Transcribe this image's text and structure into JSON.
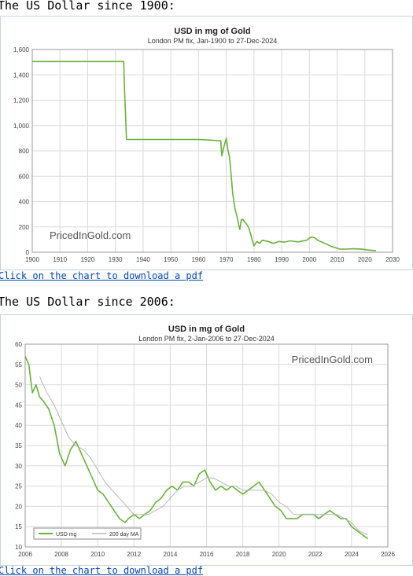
{
  "sections": [
    {
      "heading": "The US Dollar since 1900:",
      "link_text": "Click on the chart to download a pdf"
    },
    {
      "heading": "The US Dollar since 2006:",
      "link_text": "Click on the chart to download a pdf"
    }
  ],
  "colors": {
    "series": "#6bb13e",
    "ma": "#b7b7b7",
    "grid": "#d9d9d9",
    "link": "#0645ad"
  },
  "chart_data": [
    {
      "type": "line",
      "title": "USD in mg of Gold",
      "subtitle": "London PM fix, Jan-1900 to 27-Dec-2024",
      "watermark": "PricedInGold.com",
      "xlim": [
        1900,
        2030
      ],
      "ylim": [
        0,
        1600
      ],
      "x_ticks": [
        "1900",
        "1910",
        "1920",
        "1930",
        "1940",
        "1950",
        "1960",
        "1970",
        "1980",
        "1990",
        "2000",
        "2010",
        "2020",
        "2030"
      ],
      "y_ticks": [
        "0",
        "200",
        "400",
        "600",
        "800",
        "1,000",
        "1,200",
        "1,400",
        "1,600"
      ],
      "grid": true,
      "series": [
        {
          "x": [
            1900,
            1933.0,
            1933.3,
            1934,
            1950,
            1960,
            1968,
            1968.4,
            1969,
            1970,
            1970.6,
            1971.2,
            1971.8,
            1972.3,
            1973.1,
            1973.8,
            1974.5,
            1974.9,
            1975.4,
            1976,
            1976.6,
            1977.2,
            1978,
            1978.6,
            1979.4,
            1980,
            1981,
            1982,
            1983,
            1985,
            1987,
            1989,
            1991,
            1993,
            1996,
            1999,
            2000,
            2001,
            2002,
            2003,
            2005,
            2008,
            2011,
            2013,
            2016,
            2019,
            2021,
            2024
          ],
          "y": [
            1505,
            1505,
            1280,
            890,
            890,
            890,
            880,
            760,
            820,
            900,
            810,
            750,
            600,
            470,
            350,
            290,
            215,
            180,
            255,
            260,
            240,
            225,
            200,
            160,
            95,
            50,
            85,
            70,
            95,
            85,
            70,
            85,
            80,
            90,
            82,
            95,
            112,
            120,
            112,
            95,
            75,
            45,
            25,
            25,
            27,
            24,
            18,
            12
          ]
        }
      ]
    },
    {
      "type": "line",
      "title": "USD in mg of Gold",
      "subtitle": "London PM fix, 2-Jan-2006 to 27-Dec-2024",
      "watermark": "PricedInGold.com",
      "xlim": [
        2006,
        2026
      ],
      "ylim": [
        10,
        60
      ],
      "x_ticks": [
        "2006",
        "2008",
        "2010",
        "2012",
        "2014",
        "2016",
        "2018",
        "2020",
        "2022",
        "2024",
        "2026"
      ],
      "y_ticks": [
        "10",
        "15",
        "20",
        "25",
        "30",
        "35",
        "40",
        "45",
        "50",
        "55",
        "60"
      ],
      "grid": true,
      "series": [
        {
          "name": "USD mg",
          "x": [
            2006.0,
            2006.2,
            2006.4,
            2006.6,
            2006.8,
            2007.0,
            2007.3,
            2007.6,
            2007.9,
            2008.2,
            2008.5,
            2008.8,
            2009.1,
            2009.4,
            2009.7,
            2010.0,
            2010.3,
            2010.6,
            2010.9,
            2011.2,
            2011.5,
            2011.7,
            2012.0,
            2012.3,
            2012.6,
            2012.9,
            2013.2,
            2013.5,
            2013.8,
            2014.1,
            2014.4,
            2014.7,
            2015.0,
            2015.3,
            2015.6,
            2015.9,
            2016.2,
            2016.5,
            2016.8,
            2017.1,
            2017.4,
            2017.7,
            2018.0,
            2018.3,
            2018.6,
            2018.9,
            2019.2,
            2019.5,
            2019.8,
            2020.1,
            2020.4,
            2020.7,
            2021.0,
            2021.3,
            2021.6,
            2021.9,
            2022.2,
            2022.5,
            2022.8,
            2023.1,
            2023.4,
            2023.7,
            2024.0,
            2024.3,
            2024.6,
            2024.9
          ],
          "y": [
            57,
            55,
            48,
            50,
            47,
            46,
            44,
            40,
            33,
            30,
            34,
            36,
            33,
            30,
            27,
            24,
            23,
            21,
            19,
            17,
            16,
            17,
            18,
            17,
            18,
            19,
            21,
            22,
            24,
            25,
            24,
            26,
            26,
            25,
            28,
            29,
            26,
            24,
            25,
            24,
            25,
            24,
            23,
            24,
            25,
            26,
            24,
            22,
            20,
            19,
            17,
            17,
            17,
            18,
            18,
            18,
            17,
            18,
            19,
            18,
            17,
            17,
            15,
            14,
            13,
            12
          ]
        },
        {
          "name": "200 day MA",
          "x": [
            2006.8,
            2007.2,
            2007.6,
            2008.0,
            2008.4,
            2008.8,
            2009.2,
            2009.6,
            2010.0,
            2010.4,
            2010.8,
            2011.2,
            2011.6,
            2012.0,
            2012.4,
            2012.8,
            2013.2,
            2013.6,
            2014.0,
            2014.4,
            2014.8,
            2015.2,
            2015.6,
            2016.0,
            2016.4,
            2016.8,
            2017.2,
            2017.6,
            2018.0,
            2018.4,
            2018.8,
            2019.2,
            2019.6,
            2020.0,
            2020.4,
            2020.8,
            2021.2,
            2021.6,
            2022.0,
            2022.4,
            2022.8,
            2023.2,
            2023.6,
            2024.0,
            2024.4,
            2024.9
          ],
          "y": [
            52,
            48,
            45,
            41,
            37,
            35,
            34,
            32,
            29,
            26,
            24,
            22,
            20,
            18,
            18,
            18,
            19,
            20,
            22,
            24,
            25,
            25,
            26,
            27,
            27,
            26,
            25,
            25,
            24,
            24,
            24,
            24,
            23,
            21,
            20,
            18,
            18,
            18,
            18,
            18,
            18,
            18,
            17,
            16,
            14,
            13
          ]
        }
      ]
    }
  ]
}
